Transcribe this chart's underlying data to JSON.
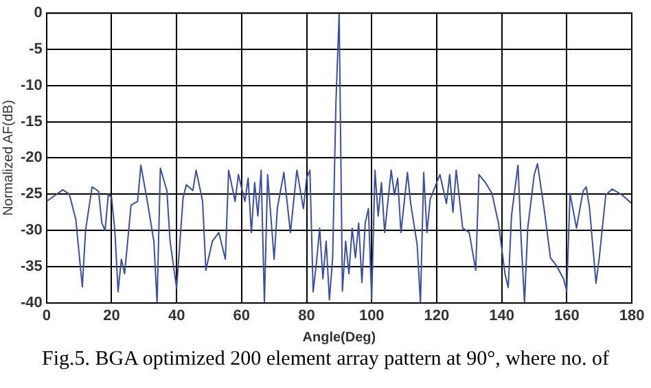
{
  "chart_data": {
    "type": "line",
    "xlabel": "Angle(Deg)",
    "ylabel": "Normalized AF(dB)",
    "annotations": [
      "Fig.5. BGA optimized 200 element array pattern at 90°, where no. of"
    ],
    "xlim": [
      0,
      180
    ],
    "xticks": [
      0,
      20,
      40,
      60,
      80,
      100,
      120,
      140,
      160,
      180
    ],
    "ylim": [
      -40,
      0
    ],
    "yticks": [
      -40,
      -35,
      -30,
      -25,
      -20,
      -15,
      -10,
      -5,
      0
    ],
    "grid": true,
    "line_style": "solid",
    "marker": "none",
    "series": [
      {
        "color": "#3a4fa0",
        "x": [
          0,
          5,
          7,
          9,
          11,
          12,
          14,
          16,
          17,
          18,
          19,
          20,
          21,
          22,
          23,
          24,
          26,
          28,
          29,
          31,
          33,
          34,
          35,
          37,
          38,
          40,
          42,
          43,
          45,
          46,
          48,
          49,
          51,
          53,
          55,
          56,
          58,
          59,
          61,
          62,
          63,
          64,
          65,
          66,
          67,
          68,
          70,
          71,
          73,
          75,
          77,
          79,
          80,
          81,
          82,
          83,
          84,
          85,
          86,
          87,
          88,
          89,
          90,
          91,
          92,
          93,
          94,
          95,
          96,
          97,
          98,
          99,
          100,
          101,
          102,
          103,
          104,
          106,
          107,
          108,
          109,
          111,
          112,
          114,
          115,
          116,
          117,
          118,
          120,
          121,
          123,
          124,
          125,
          126,
          128,
          130,
          132,
          133,
          135,
          137,
          139,
          141,
          142,
          143,
          145,
          146,
          147,
          148,
          150,
          151,
          153,
          155,
          157,
          159,
          160,
          161,
          163,
          165,
          166,
          167,
          169,
          170,
          172,
          174,
          177,
          180
        ],
        "values": [
          -26,
          -24.4,
          -25,
          -28.5,
          -37.8,
          -30,
          -24,
          -24.6,
          -29,
          -30,
          -25,
          -25.5,
          -30,
          -38.5,
          -34,
          -36,
          -26.5,
          -26,
          -21,
          -26,
          -31.5,
          -40,
          -21.4,
          -24.5,
          -31.5,
          -38,
          -25.5,
          -23.7,
          -24.5,
          -21.7,
          -26,
          -35.5,
          -31.5,
          -30.3,
          -34,
          -21.7,
          -26,
          -22.3,
          -26,
          -22.8,
          -30.3,
          -23.4,
          -28,
          -21.7,
          -40,
          -22.3,
          -34,
          -26.9,
          -22,
          -30.3,
          -21.7,
          -27,
          -22.8,
          -21.7,
          -38.5,
          -34.5,
          -29.7,
          -36.7,
          -31.5,
          -39.6,
          -33.8,
          -12.4,
          0,
          -38.4,
          -31.5,
          -36,
          -29.7,
          -33.8,
          -29,
          -37.2,
          -29,
          -27,
          -39.6,
          -21.7,
          -28,
          -23.4,
          -30.3,
          -21.7,
          -25.1,
          -22.8,
          -30.3,
          -22,
          -26.3,
          -32,
          -40,
          -22,
          -30.3,
          -25.7,
          -23.4,
          -22.3,
          -26.3,
          -22.3,
          -27.5,
          -21.7,
          -29.7,
          -30.3,
          -35.5,
          -22.3,
          -23.4,
          -24.9,
          -29,
          -36,
          -37.9,
          -28,
          -21,
          -31.5,
          -40,
          -29.7,
          -22.3,
          -20.8,
          -26.9,
          -33.8,
          -35,
          -36.7,
          -38.4,
          -24.9,
          -29.7,
          -24.6,
          -24,
          -26.9,
          -37.3,
          -33.8,
          -25.1,
          -24.3,
          -25.1,
          -26.3
        ]
      }
    ]
  }
}
